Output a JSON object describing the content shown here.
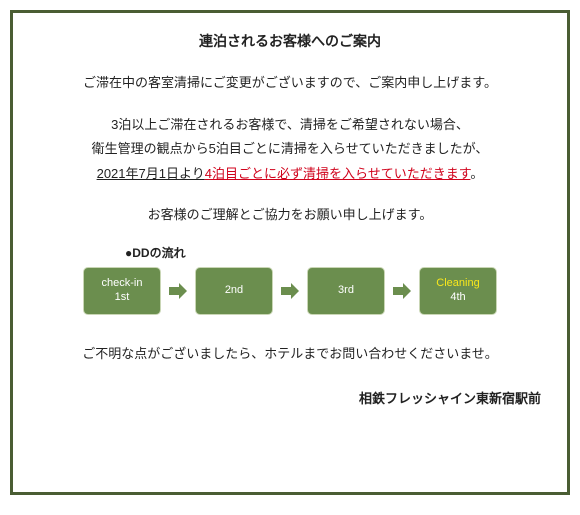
{
  "colors": {
    "border": "#4a5d33",
    "text": "#222222",
    "highlight": "#d0021b",
    "box_bg": "#6b8e4e",
    "box_border": "#c9d6b5",
    "box_text": "#ffffff",
    "cleaning_text": "#f8e71c",
    "arrow": "#6b8e4e"
  },
  "title": "連泊されるお客様へのご案内",
  "intro": "ご滞在中の客室清掃にご変更がございますので、ご案内申し上げます。",
  "body_line1": "3泊以上ご滞在されるお客様で、清掃をご希望されない場合、",
  "body_line2": "衛生管理の観点から5泊目ごとに清掃を入らせていただきましたが、",
  "date_part": "2021年7月1日より",
  "highlight_part": "4泊目ごとに必ず清掃を入らせていただきます",
  "period": "。",
  "thanks": "お客様のご理解とご協力をお願い申し上げます。",
  "flow_label": "●DDの流れ",
  "flow_boxes": [
    {
      "line1": "check-in",
      "line2": "1st",
      "cleaning": false
    },
    {
      "line1": "2nd",
      "line2": "",
      "cleaning": false
    },
    {
      "line1": "3rd",
      "line2": "",
      "cleaning": false
    },
    {
      "line1": "Cleaning",
      "line2": "4th",
      "cleaning": true
    }
  ],
  "inquiry": "ご不明な点がございましたら、ホテルまでお問い合わせくださいませ。",
  "signature": "相鉄フレッシャイン東新宿駅前"
}
